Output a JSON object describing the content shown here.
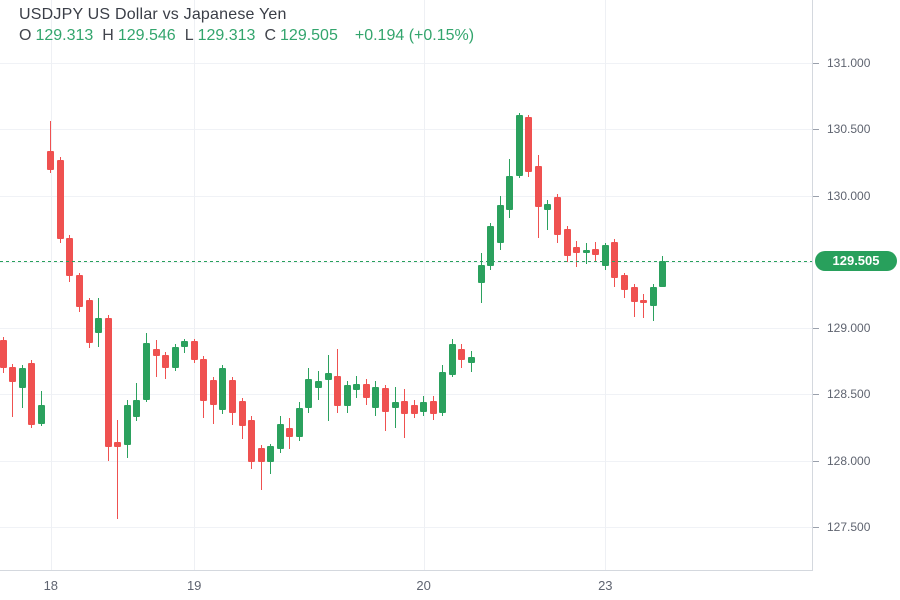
{
  "header": {
    "title": "USDJPY US Dollar vs Japanese Yen",
    "ohlc": {
      "o_label": "O",
      "o": "129.313",
      "h_label": "H",
      "h": "129.546",
      "l_label": "L",
      "l": "129.313",
      "c_label": "C",
      "c": "129.505",
      "change": "+0.194 (+0.15%)"
    }
  },
  "price_axis": {
    "labels": [
      "131.000",
      "130.500",
      "130.000",
      "129.000",
      "128.500",
      "128.000",
      "127.500"
    ],
    "current_price_badge": "129.505"
  },
  "time_axis": {
    "labels": [
      {
        "text": "18",
        "slot": 5
      },
      {
        "text": "19",
        "slot": 20
      },
      {
        "text": "20",
        "slot": 44
      },
      {
        "text": "23",
        "slot": 63
      }
    ]
  },
  "colors": {
    "up": "#2ba15e",
    "down": "#ef5150",
    "badge": "#28a05c",
    "current_line": "#28a05c",
    "text_green": "#33a56d",
    "grid": "#f0f2f6",
    "axis_text": "#5f6470"
  },
  "chart_data": {
    "type": "candlestick",
    "symbol": "USDJPY",
    "title": "USDJPY US Dollar vs Japanese Yen",
    "current_price": 129.505,
    "current_candle": {
      "open": 129.313,
      "high": 129.546,
      "low": 129.313,
      "close": 129.505,
      "change": 0.194,
      "change_pct": "+0.15%"
    },
    "y_range": [
      127.5,
      131.0
    ],
    "grid_step": 0.5,
    "legend_position": "top-left",
    "axis_position": "right",
    "ohlc_format": "[open, high, low, close]",
    "candles": [
      [
        128.91,
        128.93,
        128.66,
        128.7
      ],
      [
        128.71,
        128.73,
        128.33,
        128.59
      ],
      [
        128.55,
        128.72,
        128.4,
        128.7
      ],
      [
        128.74,
        128.76,
        128.25,
        128.27
      ],
      [
        128.28,
        128.53,
        128.26,
        128.42
      ],
      [
        130.34,
        130.56,
        130.17,
        130.19
      ],
      [
        130.27,
        130.29,
        129.64,
        129.67
      ],
      [
        129.68,
        129.7,
        129.35,
        129.39
      ],
      [
        129.4,
        129.42,
        129.12,
        129.16
      ],
      [
        129.21,
        129.23,
        128.85,
        128.89
      ],
      [
        128.96,
        129.23,
        128.86,
        129.08
      ],
      [
        129.08,
        129.1,
        128.0,
        128.1
      ],
      [
        128.14,
        128.31,
        127.56,
        128.1
      ],
      [
        128.12,
        128.46,
        128.02,
        128.42
      ],
      [
        128.33,
        128.59,
        128.3,
        128.46
      ],
      [
        128.46,
        128.96,
        128.44,
        128.89
      ],
      [
        128.84,
        128.91,
        128.63,
        128.79
      ],
      [
        128.8,
        128.82,
        128.62,
        128.7
      ],
      [
        128.7,
        128.88,
        128.68,
        128.86
      ],
      [
        128.86,
        128.92,
        128.81,
        128.9
      ],
      [
        128.9,
        128.92,
        128.74,
        128.76
      ],
      [
        128.77,
        128.79,
        128.32,
        128.45
      ],
      [
        128.61,
        128.63,
        128.28,
        128.42
      ],
      [
        128.38,
        128.72,
        128.35,
        128.7
      ],
      [
        128.61,
        128.63,
        128.27,
        128.36
      ],
      [
        128.45,
        128.47,
        128.16,
        128.26
      ],
      [
        128.31,
        128.34,
        127.94,
        127.99
      ],
      [
        128.1,
        128.12,
        127.78,
        127.99
      ],
      [
        127.99,
        128.13,
        127.9,
        128.11
      ],
      [
        128.09,
        128.34,
        128.06,
        128.28
      ],
      [
        128.25,
        128.32,
        128.09,
        128.18
      ],
      [
        128.18,
        128.44,
        128.15,
        128.4
      ],
      [
        128.4,
        128.7,
        128.36,
        128.62
      ],
      [
        128.55,
        128.68,
        128.46,
        128.6
      ],
      [
        128.61,
        128.8,
        128.3,
        128.66
      ],
      [
        128.64,
        128.84,
        128.36,
        128.41
      ],
      [
        128.41,
        128.6,
        128.36,
        128.57
      ],
      [
        128.53,
        128.64,
        128.47,
        128.58
      ],
      [
        128.58,
        128.62,
        128.42,
        128.47
      ],
      [
        128.4,
        128.6,
        128.34,
        128.56
      ],
      [
        128.55,
        128.57,
        128.22,
        128.37
      ],
      [
        128.4,
        128.56,
        128.25,
        128.44
      ],
      [
        128.45,
        128.54,
        128.17,
        128.35
      ],
      [
        128.42,
        128.46,
        128.32,
        128.35
      ],
      [
        128.37,
        128.49,
        128.34,
        128.44
      ],
      [
        128.45,
        128.49,
        128.31,
        128.35
      ],
      [
        128.36,
        128.72,
        128.34,
        128.67
      ],
      [
        128.65,
        128.92,
        128.63,
        128.88
      ],
      [
        128.84,
        128.88,
        128.7,
        128.76
      ],
      [
        128.74,
        128.83,
        128.67,
        128.78
      ],
      [
        129.34,
        129.57,
        129.19,
        129.48
      ],
      [
        129.47,
        129.79,
        129.44,
        129.77
      ],
      [
        129.64,
        130.0,
        129.59,
        129.93
      ],
      [
        129.89,
        130.28,
        129.83,
        130.15
      ],
      [
        130.15,
        130.62,
        130.13,
        130.61
      ],
      [
        130.59,
        130.61,
        130.14,
        130.18
      ],
      [
        130.22,
        130.31,
        129.68,
        129.91
      ],
      [
        129.89,
        129.97,
        129.74,
        129.94
      ],
      [
        129.99,
        130.01,
        129.64,
        129.7
      ],
      [
        129.75,
        129.77,
        129.5,
        129.54
      ],
      [
        129.61,
        129.66,
        129.46,
        129.57
      ],
      [
        129.57,
        129.64,
        129.48,
        129.59
      ],
      [
        129.6,
        129.65,
        129.5,
        129.55
      ],
      [
        129.47,
        129.64,
        129.44,
        129.63
      ],
      [
        129.65,
        129.67,
        129.31,
        129.38
      ],
      [
        129.4,
        129.42,
        129.23,
        129.29
      ],
      [
        129.31,
        129.33,
        129.08,
        129.2
      ],
      [
        129.21,
        129.26,
        129.08,
        129.19
      ],
      [
        129.17,
        129.33,
        129.05,
        129.31
      ],
      [
        129.313,
        129.546,
        129.313,
        129.505
      ]
    ]
  }
}
